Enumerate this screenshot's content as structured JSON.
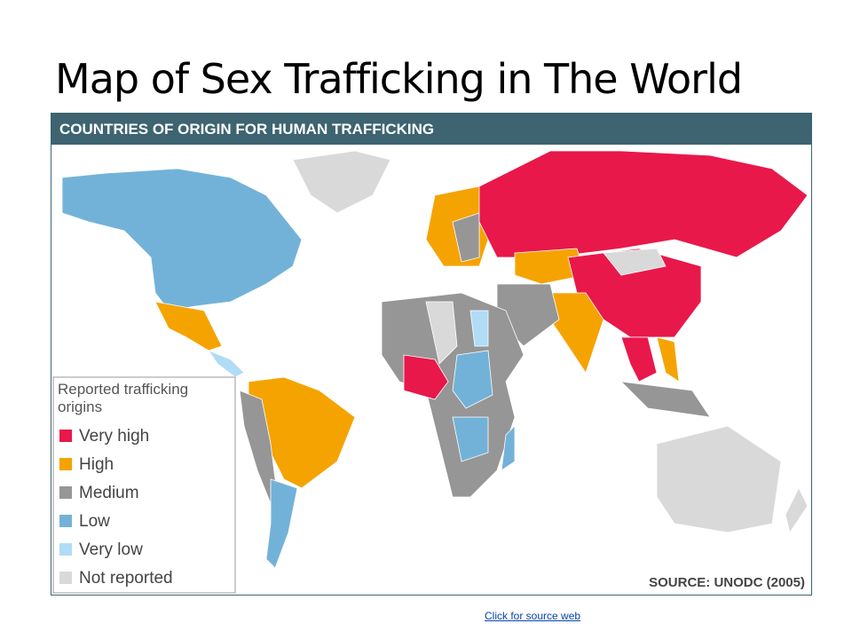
{
  "slide_title": "Map of Sex Trafficking in The World",
  "map": {
    "header": "COUNTRIES OF ORIGIN FOR HUMAN TRAFFICKING",
    "legend": {
      "title": "Reported trafficking origins",
      "items": [
        {
          "label": "Very high",
          "color": "#e8184a"
        },
        {
          "label": "High",
          "color": "#f5a300"
        },
        {
          "label": "Medium",
          "color": "#969696"
        },
        {
          "label": "Low",
          "color": "#73b2d8"
        },
        {
          "label": "Very low",
          "color": "#b0dcf5"
        },
        {
          "label": "Not reported",
          "color": "#d9d9d9"
        }
      ]
    },
    "source": "SOURCE: UNODC (2005)"
  },
  "link": "Click for source web"
}
